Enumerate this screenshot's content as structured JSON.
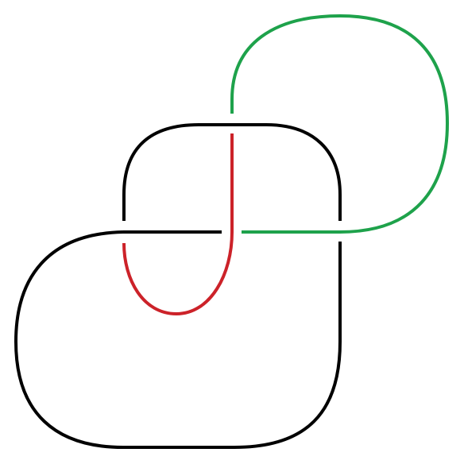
{
  "diagram": {
    "background_color": "#ffffff",
    "strands": {
      "black": {
        "color": "#000000"
      },
      "red": {
        "color": "#cc2229"
      },
      "green": {
        "color": "#1ea24b"
      }
    }
  }
}
